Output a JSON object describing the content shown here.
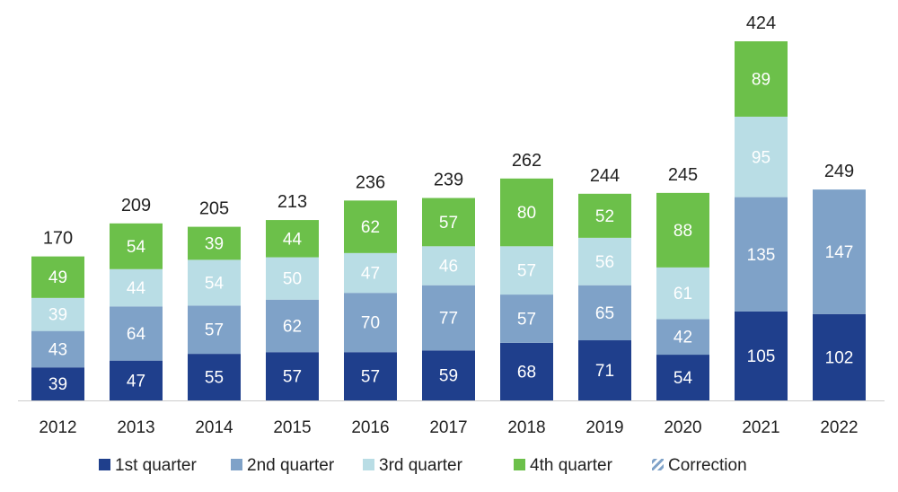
{
  "chart_data": {
    "type": "bar",
    "stacked": true,
    "title": "",
    "xlabel": "",
    "ylabel": "",
    "categories": [
      "2012",
      "2013",
      "2014",
      "2015",
      "2016",
      "2017",
      "2018",
      "2019",
      "2020",
      "2021",
      "2022"
    ],
    "series": [
      {
        "name": "1st quarter",
        "color": "#1f3f8c",
        "label_color": "#ffffff",
        "values": [
          39,
          47,
          55,
          57,
          57,
          59,
          68,
          71,
          54,
          105,
          102
        ]
      },
      {
        "name": "2nd quarter",
        "color": "#7fa2c8",
        "label_color": "#ffffff",
        "values": [
          43,
          64,
          57,
          62,
          70,
          77,
          57,
          65,
          42,
          135,
          147
        ]
      },
      {
        "name": "3rd quarter",
        "color": "#b9dde5",
        "label_color": "#ffffff",
        "values": [
          39,
          44,
          54,
          50,
          47,
          46,
          57,
          56,
          61,
          95,
          null
        ]
      },
      {
        "name": "4th quarter",
        "color": "#6cc04a",
        "label_color": "#ffffff",
        "values": [
          49,
          54,
          39,
          44,
          62,
          57,
          80,
          52,
          88,
          89,
          null
        ]
      },
      {
        "name": "Correction",
        "color": "#7fa2c8",
        "pattern": "hatched",
        "values": [
          null,
          null,
          null,
          null,
          null,
          null,
          null,
          null,
          null,
          null,
          0
        ]
      }
    ],
    "totals": [
      170,
      209,
      205,
      213,
      236,
      239,
      262,
      244,
      245,
      424,
      249
    ],
    "ylim": [
      0,
      424
    ],
    "grid": false,
    "legend": "bottom"
  }
}
